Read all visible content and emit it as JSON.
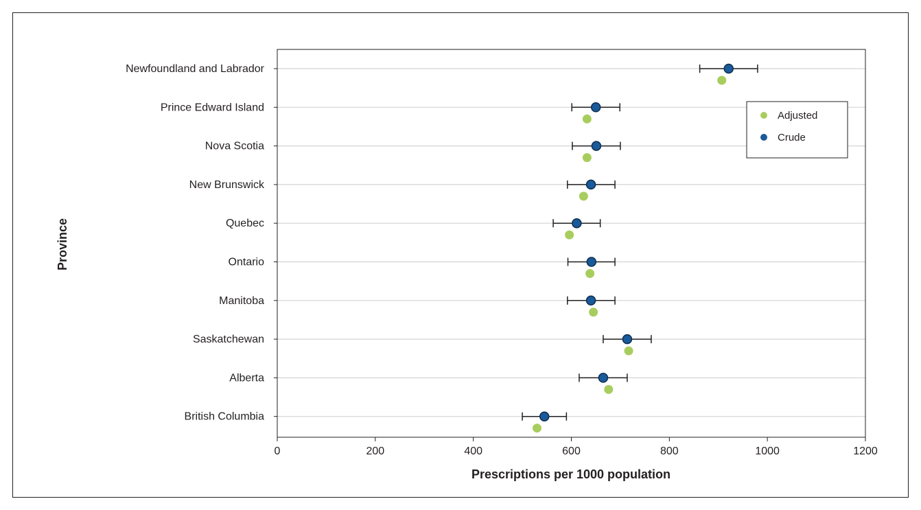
{
  "chart_data": {
    "type": "scatter",
    "title": "",
    "xlabel": "Prescriptions per 1000 population",
    "ylabel": "Province",
    "xlim": [
      0,
      1200
    ],
    "xticks": [
      0,
      200,
      400,
      600,
      800,
      1000,
      1200
    ],
    "xtick_labels": [
      "0",
      "200",
      "400",
      "600",
      "800",
      "1000",
      "1200"
    ],
    "categories": [
      "Newfoundland and Labrador",
      "Prince Edward Island",
      "Nova Scotia",
      "New Brunswick",
      "Quebec",
      "Ontario",
      "Manitoba",
      "Saskatchewan",
      "Alberta",
      "British Columbia"
    ],
    "series": [
      {
        "name": "Crude",
        "color": "#1a5a9a",
        "values": [
          921,
          650,
          651,
          640,
          611,
          641,
          640,
          714,
          665,
          545
        ],
        "ci_low": [
          862,
          601,
          602,
          592,
          563,
          593,
          592,
          665,
          616,
          500
        ],
        "ci_high": [
          980,
          699,
          700,
          689,
          659,
          689,
          689,
          763,
          714,
          590
        ]
      },
      {
        "name": "Adjusted",
        "color": "#a8cd5e",
        "values": [
          907,
          632,
          632,
          625,
          596,
          638,
          645,
          717,
          676,
          530
        ]
      }
    ],
    "legend": {
      "position": "top-right",
      "entries": [
        "Adjusted",
        "Crude"
      ]
    },
    "grid": "horizontal"
  }
}
